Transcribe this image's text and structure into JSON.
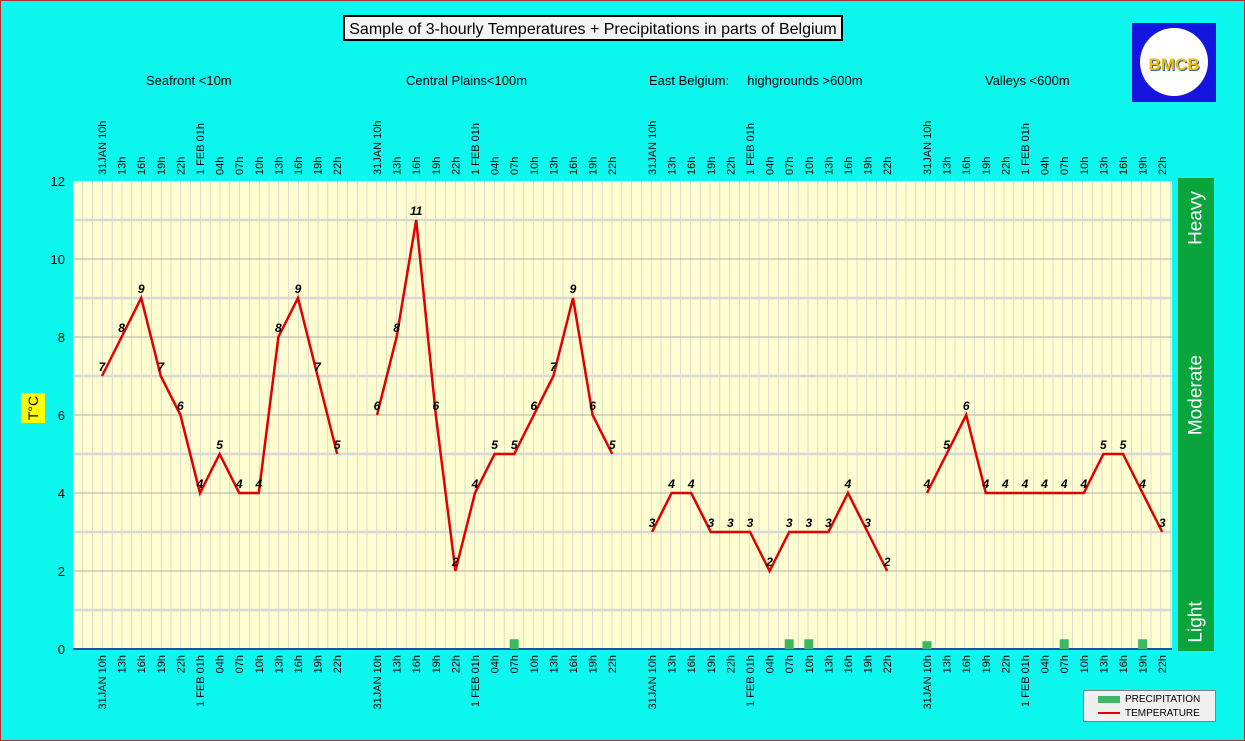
{
  "title": "Sample of 3-hourly Temperatures + Precipitations in parts of Belgium",
  "logo_text": "BMCB",
  "regions": [
    "Seafront <10m",
    "Central Plains<100m",
    "East Belgium:     highgrounds >600m",
    "Valleys <600m"
  ],
  "y_axis_label": "T°C",
  "intensity_labels": [
    "Heavy",
    "Moderate",
    "Light"
  ],
  "legend": {
    "precipitation": "PRECIPITATION",
    "temperature": "TEMPERATURE"
  },
  "colors": {
    "background": "#0cf8ee",
    "plot_area": "#fefed0",
    "temperature": "#e00000",
    "precipitation": "#3cb864",
    "intensity_bar": "#0aa43c"
  },
  "chart_data": {
    "type": "line",
    "ylim": [
      0,
      12
    ],
    "yticks": [
      0,
      2,
      4,
      6,
      8,
      10,
      12
    ],
    "grid": true,
    "legend_position": "bottom-right",
    "panels": [
      {
        "name": "Seafront <10m",
        "x": [
          "31JAN 10h",
          "13h",
          "16h",
          "19h",
          "22h",
          "1 FEB 01h",
          "04h",
          "07h",
          "10h",
          "13h",
          "16h",
          "19h",
          "22h"
        ],
        "temperature": [
          7,
          8,
          9,
          7,
          6,
          4,
          5,
          4,
          4,
          8,
          9,
          7,
          5
        ],
        "precipitation": [
          0,
          0,
          0,
          0,
          0,
          0,
          0,
          0,
          0,
          0,
          0,
          0,
          0
        ]
      },
      {
        "name": "Central Plains<100m",
        "x": [
          "31JAN 10h",
          "13h",
          "16h",
          "19h",
          "22h",
          "1 FEB 01h",
          "04h",
          "07h",
          "10h",
          "13h",
          "16h",
          "19h",
          "22h"
        ],
        "temperature": [
          6,
          8,
          11,
          6,
          2,
          4,
          5,
          5,
          6,
          7,
          9,
          6,
          5
        ],
        "precipitation": [
          0,
          0,
          0,
          0,
          0,
          0,
          0,
          0.25,
          0,
          0,
          0,
          0,
          0
        ]
      },
      {
        "name": "East Belgium: highgrounds >600m",
        "x": [
          "31JAN 10h",
          "13h",
          "16h",
          "19h",
          "22h",
          "1 FEB 01h",
          "04h",
          "07h",
          "10h",
          "13h",
          "16h",
          "19h",
          "22h"
        ],
        "temperature": [
          3,
          4,
          4,
          3,
          3,
          3,
          2,
          3,
          3,
          3,
          4,
          3,
          2
        ],
        "precipitation": [
          0,
          0,
          0,
          0,
          0,
          0,
          0,
          0.25,
          0.25,
          0,
          0,
          0,
          0
        ]
      },
      {
        "name": "Valleys <600m",
        "x": [
          "31JAN 10h",
          "13h",
          "16h",
          "19h",
          "22h",
          "1 FEB 01h",
          "04h",
          "07h",
          "10h",
          "13h",
          "16h",
          "19h",
          "22h"
        ],
        "temperature": [
          4,
          5,
          6,
          4,
          4,
          4,
          4,
          4,
          4,
          5,
          5,
          4,
          3
        ],
        "precipitation": [
          0.2,
          0,
          0,
          0,
          0,
          0,
          0,
          0.25,
          0,
          0,
          0,
          0.25,
          0
        ]
      }
    ]
  }
}
